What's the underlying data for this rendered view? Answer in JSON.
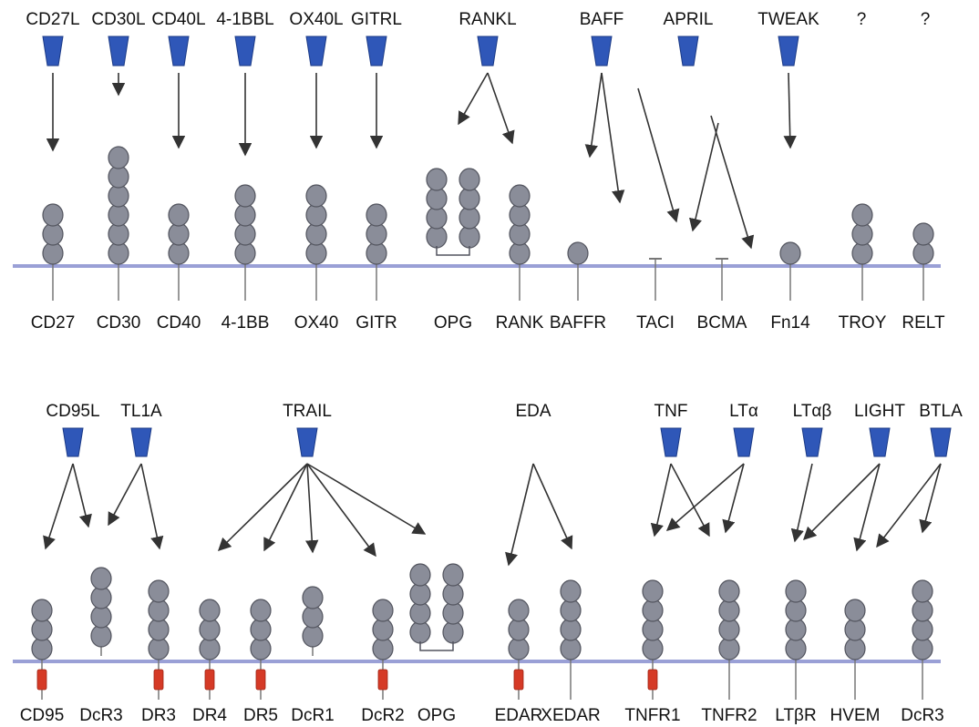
{
  "colors": {
    "ligand_fill": "#2f57b8",
    "ligand_stroke": "#1b3a86",
    "domain_fill": "#8a8d99",
    "domain_stroke": "#52545e",
    "membrane": "#9aa0d6",
    "stem": "#777777",
    "arrow": "#333333",
    "death_domain": "#d53a26"
  },
  "top_row": {
    "ligands": [
      {
        "key": "l1",
        "label": "CD27L",
        "has_icon": true
      },
      {
        "key": "l2",
        "label": "CD30L",
        "has_icon": true
      },
      {
        "key": "l3",
        "label": "CD40L",
        "has_icon": true
      },
      {
        "key": "l4",
        "label": "4-1BBL",
        "has_icon": true
      },
      {
        "key": "l5",
        "label": "OX40L",
        "has_icon": true
      },
      {
        "key": "l6",
        "label": "GITRL",
        "has_icon": true
      },
      {
        "key": "l7",
        "label": "RANKL",
        "has_icon": true
      },
      {
        "key": "l8",
        "label": "BAFF",
        "has_icon": true
      },
      {
        "key": "l9",
        "label": "APRIL",
        "has_icon": true
      },
      {
        "key": "l10",
        "label": "TWEAK",
        "has_icon": true
      },
      {
        "key": "l11",
        "label": "?",
        "has_icon": false
      },
      {
        "key": "l12",
        "label": "?",
        "has_icon": false
      }
    ],
    "receptors": [
      {
        "key": "r1",
        "label": "CD27",
        "domains": 3,
        "death_domain": false
      },
      {
        "key": "r2",
        "label": "CD30",
        "domains": 6,
        "death_domain": false
      },
      {
        "key": "r3",
        "label": "CD40",
        "domains": 3,
        "death_domain": false
      },
      {
        "key": "r4",
        "label": "4-1BB",
        "domains": 4,
        "death_domain": false
      },
      {
        "key": "r5",
        "label": "OX40",
        "domains": 4,
        "death_domain": false
      },
      {
        "key": "r6",
        "label": "GITR",
        "domains": 3,
        "death_domain": false
      },
      {
        "key": "r7",
        "label": "OPG",
        "domains": 4,
        "death_domain": false,
        "soluble_dimer": true
      },
      {
        "key": "r8",
        "label": "RANK",
        "domains": 4,
        "death_domain": false
      },
      {
        "key": "r9",
        "label": "BAFFR",
        "domains": 1,
        "death_domain": false
      },
      {
        "key": "r10",
        "label": "TACI",
        "domains": 0,
        "death_domain": false
      },
      {
        "key": "r11",
        "label": "BCMA",
        "domains": 0,
        "death_domain": false
      },
      {
        "key": "r12",
        "label": "Fn14",
        "domains": 1,
        "death_domain": false
      },
      {
        "key": "r13",
        "label": "TROY",
        "domains": 3,
        "death_domain": false
      },
      {
        "key": "r14",
        "label": "RELT",
        "domains": 2,
        "death_domain": false
      }
    ],
    "bindings": [
      {
        "from": "l1",
        "to": "r1"
      },
      {
        "from": "l2",
        "to": "r2"
      },
      {
        "from": "l3",
        "to": "r3"
      },
      {
        "from": "l4",
        "to": "r4"
      },
      {
        "from": "l5",
        "to": "r5"
      },
      {
        "from": "l6",
        "to": "r6"
      },
      {
        "from": "l7",
        "to": "r7"
      },
      {
        "from": "l7",
        "to": "r8"
      },
      {
        "from": "l8",
        "to": "r9"
      },
      {
        "from": "l8",
        "to": "r10"
      },
      {
        "from": "l8",
        "to": "r11"
      },
      {
        "from": "l9",
        "to": "r10"
      },
      {
        "from": "l9",
        "to": "r11"
      },
      {
        "from": "l10",
        "to": "r12"
      }
    ]
  },
  "bottom_row": {
    "ligands": [
      {
        "key": "b1",
        "label": "CD95L",
        "has_icon": true
      },
      {
        "key": "b2",
        "label": "TL1A",
        "has_icon": true
      },
      {
        "key": "b3",
        "label": "TRAIL",
        "has_icon": true
      },
      {
        "key": "b4",
        "label": "EDA",
        "has_icon": false
      },
      {
        "key": "b5",
        "label": "TNF",
        "has_icon": true
      },
      {
        "key": "b6",
        "label": "LTα",
        "has_icon": true
      },
      {
        "key": "b7",
        "label": "LTαβ",
        "has_icon": true
      },
      {
        "key": "b8",
        "label": "LIGHT",
        "has_icon": true
      },
      {
        "key": "b9",
        "label": "BTLA",
        "has_icon": true
      }
    ],
    "receptors": [
      {
        "key": "s1",
        "label": "CD95",
        "domains": 3,
        "death_domain": true
      },
      {
        "key": "s2",
        "label": "DcR3",
        "domains": 4,
        "death_domain": false,
        "soluble": true
      },
      {
        "key": "s3",
        "label": "DR3",
        "domains": 4,
        "death_domain": true
      },
      {
        "key": "s4",
        "label": "DR4",
        "domains": 3,
        "death_domain": true
      },
      {
        "key": "s5",
        "label": "DR5",
        "domains": 3,
        "death_domain": true
      },
      {
        "key": "s6",
        "label": "DcR1",
        "domains": 3,
        "death_domain": false,
        "soluble": true
      },
      {
        "key": "s7",
        "label": "DcR2",
        "domains": 3,
        "death_domain": true
      },
      {
        "key": "s8",
        "label": "OPG",
        "domains": 4,
        "death_domain": false,
        "soluble_dimer": true
      },
      {
        "key": "s9",
        "label": "EDAR",
        "domains": 3,
        "death_domain": true
      },
      {
        "key": "s10",
        "label": "XEDAR",
        "domains": 4,
        "death_domain": false
      },
      {
        "key": "s11",
        "label": "TNFR1",
        "domains": 4,
        "death_domain": true
      },
      {
        "key": "s12",
        "label": "TNFR2",
        "domains": 4,
        "death_domain": false
      },
      {
        "key": "s13",
        "label": "LTβR",
        "domains": 4,
        "death_domain": false
      },
      {
        "key": "s14",
        "label": "HVEM",
        "domains": 3,
        "death_domain": false
      },
      {
        "key": "s15",
        "label": "DcR3",
        "domains": 4,
        "death_domain": false
      }
    ],
    "bindings": [
      {
        "from": "b1",
        "to": "s1"
      },
      {
        "from": "b1",
        "to": "s2"
      },
      {
        "from": "b2",
        "to": "s2"
      },
      {
        "from": "b2",
        "to": "s3"
      },
      {
        "from": "b3",
        "to": "s4"
      },
      {
        "from": "b3",
        "to": "s5"
      },
      {
        "from": "b3",
        "to": "s6"
      },
      {
        "from": "b3",
        "to": "s7"
      },
      {
        "from": "b3",
        "to": "s8"
      },
      {
        "from": "b4",
        "to": "s9"
      },
      {
        "from": "b4",
        "to": "s10"
      },
      {
        "from": "b5",
        "to": "s11"
      },
      {
        "from": "b5",
        "to": "s12"
      },
      {
        "from": "b6",
        "to": "s11"
      },
      {
        "from": "b6",
        "to": "s12"
      },
      {
        "from": "b7",
        "to": "s13"
      },
      {
        "from": "b8",
        "to": "s13"
      },
      {
        "from": "b8",
        "to": "s14"
      },
      {
        "from": "b9",
        "to": "s14"
      },
      {
        "from": "b9",
        "to": "s15"
      }
    ]
  }
}
